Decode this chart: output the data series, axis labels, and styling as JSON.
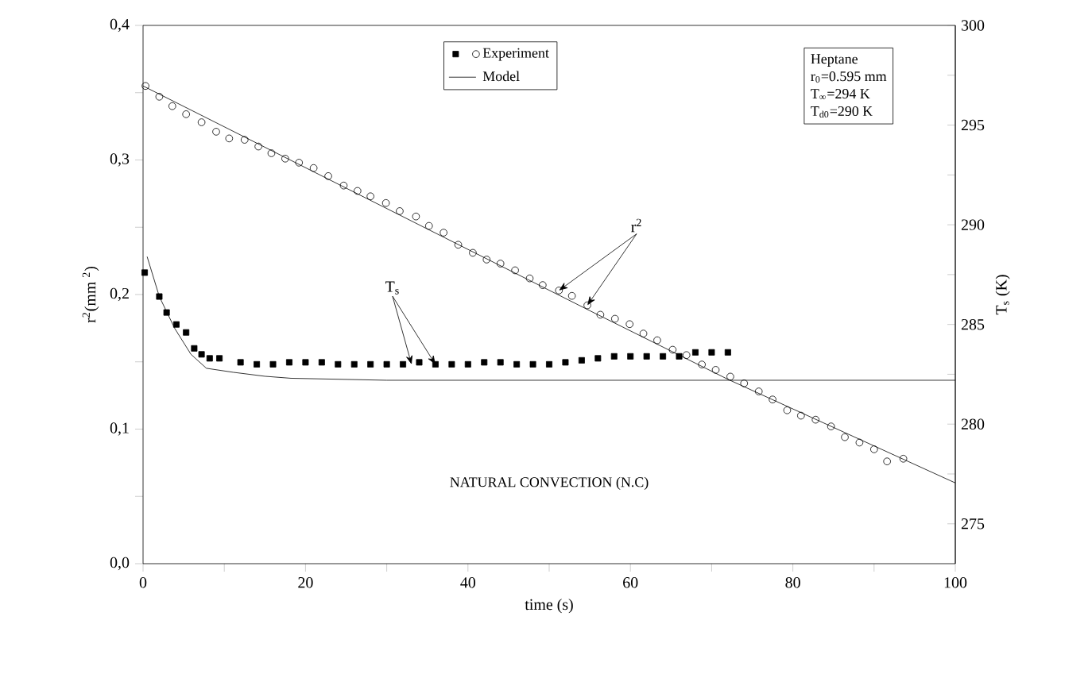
{
  "chart_data": {
    "type": "line",
    "xlabel": "time (s)",
    "ylabel": "r$^{2}$(mm $^{2}$)",
    "y2label": "T$_{s}$ (K)",
    "xlim": [
      0,
      100
    ],
    "ylim": [
      0,
      0.4
    ],
    "y2lim": [
      273,
      300
    ],
    "xticks": [
      0,
      {
        "value": 10,
        "label": null
      },
      20,
      {
        "value": 30,
        "label": null
      },
      40,
      {
        "value": 50,
        "label": null
      },
      60,
      {
        "value": 70,
        "label": null
      },
      80,
      {
        "value": 90,
        "label": null
      },
      100
    ],
    "yticks": [
      {
        "value": 0,
        "label": "0,0"
      },
      {
        "value": 0.05,
        "label": null
      },
      {
        "value": 0.1,
        "label": "0,1"
      },
      {
        "value": 0.15,
        "label": null
      },
      {
        "value": 0.2,
        "label": "0,2"
      },
      {
        "value": 0.25,
        "label": null
      },
      {
        "value": 0.3,
        "label": "0,3"
      },
      {
        "value": 0.35,
        "label": null
      },
      {
        "value": 0.4,
        "label": "0,4"
      }
    ],
    "y2ticks": [
      275,
      {
        "value": 277.5,
        "label": null
      },
      280,
      {
        "value": 282.5,
        "label": null
      },
      285,
      {
        "value": 287.5,
        "label": null
      },
      290,
      {
        "value": 292.5,
        "label": null
      },
      295,
      {
        "value": 297.5,
        "label": null
      },
      300
    ],
    "legend": "top",
    "series": [
      {
        "type": "scatter",
        "marker": "square",
        "axis": "y2",
        "color": "#000000",
        "x": [
          0.2,
          2.0,
          2.9,
          4.1,
          5.3,
          6.3,
          7.2,
          8.2,
          9.4,
          12,
          14,
          16,
          18,
          20,
          22,
          24,
          26,
          28,
          30,
          32,
          34,
          36,
          38,
          40,
          42,
          44,
          46,
          48,
          50,
          52,
          54,
          56,
          58,
          60,
          62,
          64,
          66,
          68,
          70,
          72
        ],
        "values": [
          287.6,
          286.4,
          285.6,
          285.0,
          284.6,
          283.8,
          283.5,
          283.3,
          283.3,
          283.1,
          283.0,
          283.0,
          283.1,
          283.1,
          283.1,
          283.0,
          283.0,
          283.0,
          283.0,
          283.0,
          283.1,
          283.0,
          283.0,
          283.0,
          283.1,
          283.1,
          283.0,
          283.0,
          283.0,
          283.1,
          283.2,
          283.3,
          283.4,
          283.4,
          283.4,
          283.4,
          283.4,
          283.6,
          283.6,
          283.6
        ]
      },
      {
        "name": "Experiment",
        "type": "scatter",
        "marker": "circle",
        "color": "#000000",
        "x": [
          0.3,
          2.0,
          3.6,
          5.3,
          7.2,
          9.0,
          10.6,
          12.5,
          14.2,
          15.8,
          17.5,
          19.2,
          21.0,
          22.8,
          24.7,
          26.4,
          28.0,
          29.9,
          31.6,
          33.6,
          35.2,
          37.0,
          38.8,
          40.6,
          42.3,
          44.0,
          45.8,
          47.6,
          49.2,
          51.2,
          52.8,
          54.7,
          56.3,
          58.1,
          59.9,
          61.6,
          63.3,
          65.2,
          66.9,
          68.8,
          70.5,
          72.3,
          74.0,
          75.8,
          77.5,
          79.3,
          81.0,
          82.8,
          84.7,
          86.4,
          88.2,
          90.0,
          91.6,
          93.6
        ],
        "values": [
          0.355,
          0.347,
          0.34,
          0.334,
          0.328,
          0.321,
          0.316,
          0.315,
          0.31,
          0.305,
          0.301,
          0.298,
          0.294,
          0.288,
          0.281,
          0.277,
          0.273,
          0.268,
          0.262,
          0.258,
          0.251,
          0.246,
          0.237,
          0.231,
          0.226,
          0.223,
          0.218,
          0.212,
          0.207,
          0.203,
          0.199,
          0.192,
          0.185,
          0.182,
          0.178,
          0.171,
          0.166,
          0.159,
          0.155,
          0.148,
          0.144,
          0.139,
          0.134,
          0.128,
          0.122,
          0.114,
          0.11,
          0.107,
          0.102,
          0.094,
          0.09,
          0.085,
          0.076,
          0.078
        ]
      },
      {
        "name": "Model",
        "marker": "none",
        "color": "#000000",
        "x": [
          0,
          55,
          72,
          100
        ],
        "values": [
          0.355,
          0.188,
          0.137,
          0.06
        ]
      },
      {
        "marker": "none",
        "axis": "y2",
        "color": "#000000",
        "x": [
          0.5,
          2.0,
          3.9,
          5.9,
          7.8,
          11.1,
          15,
          18.2,
          30,
          100
        ],
        "values": [
          288.4,
          286.4,
          284.8,
          283.5,
          282.8,
          282.6,
          282.4,
          282.3,
          282.2,
          282.2
        ]
      }
    ],
    "annotations": [
      {
        "text": "r$^{2}$",
        "x": 54.7,
        "y": 0.192
      },
      {
        "text": "T$_{s}$",
        "x": 36,
        "y": 0.148
      },
      "NATURAL CONVECTION (N.C)",
      "Heptane",
      "r$_{0}$=0.595 mm",
      "T$_{∞}$=294 K",
      "T$_{d0}$=290 K"
    ]
  }
}
